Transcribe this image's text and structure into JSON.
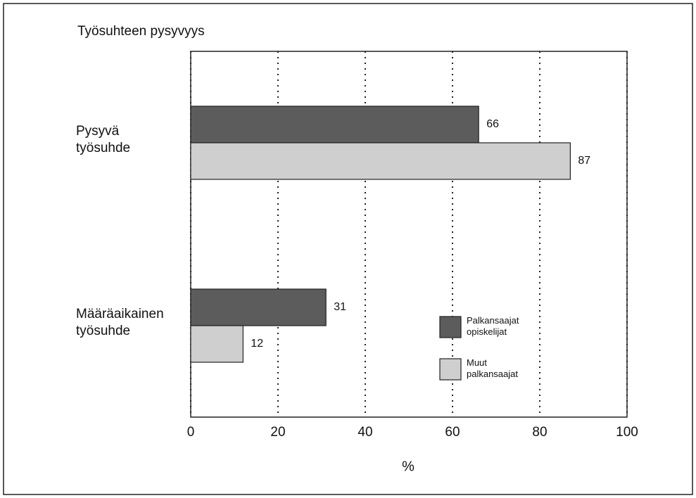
{
  "chart_data": {
    "type": "barh",
    "title": "Työsuhteen pysyvyys",
    "categories": [
      "Pysyvä\ntyösuhde",
      "Määräaikainen\ntyösuhde"
    ],
    "series": [
      {
        "name": "Palkansaajat\nopiskelijat",
        "color": "#5c5c5c",
        "values": [
          66,
          31
        ]
      },
      {
        "name": "Muut\npalkansaajat",
        "color": "#cfcfcf",
        "values": [
          87,
          12
        ]
      }
    ],
    "xlabel": "%",
    "xlim": [
      0,
      100
    ],
    "xticks": [
      0,
      20,
      40,
      60,
      80,
      100
    ],
    "grid": true,
    "legend": "lower right"
  }
}
